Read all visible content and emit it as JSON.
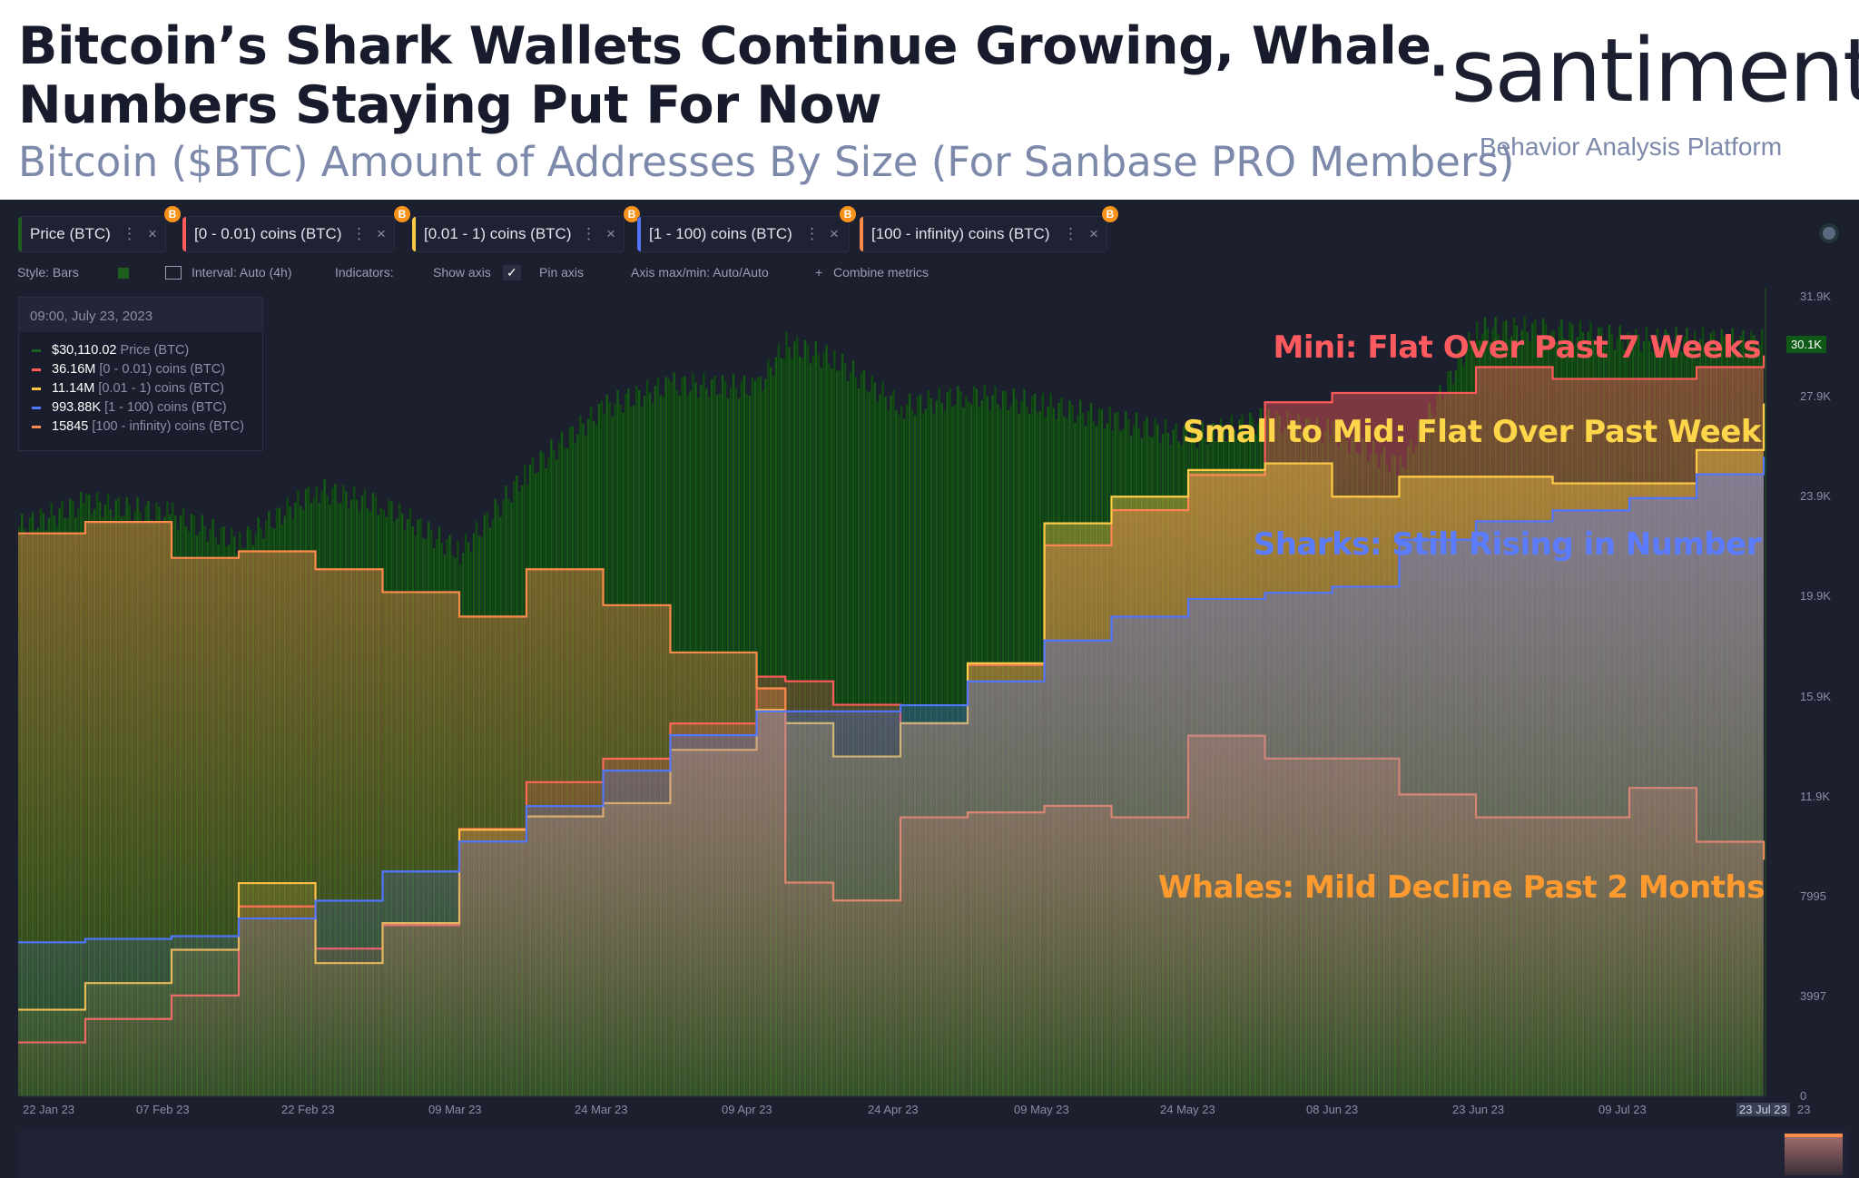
{
  "header": {
    "title_line1": "Bitcoin’s Shark Wallets Continue Growing, Whale",
    "title_line2": "Numbers Staying Put For Now",
    "subtitle": "Bitcoin ($BTC) Amount of Addresses By Size (For Sanbase PRO Members)",
    "logo": "·santiment·",
    "tagline": "Behavior Analysis Platform"
  },
  "tabs": [
    {
      "label": "Price (BTC)",
      "color": "#1e5e1e"
    },
    {
      "label": "[0 - 0.01) coins (BTC)",
      "color": "#ff5b5b"
    },
    {
      "label": "[0.01 - 1) coins (BTC)",
      "color": "#ffcb47"
    },
    {
      "label": "[1 - 100) coins (BTC)",
      "color": "#5275ff"
    },
    {
      "label": "[100 - infinity) coins (BTC)",
      "color": "#ff8a4c"
    }
  ],
  "controls": {
    "style": "Style: Bars",
    "interval": "Interval: Auto (4h)",
    "indicators": "Indicators:",
    "show_axis": "Show axis",
    "pin_axis": "Pin axis",
    "axis_maxmin": "Axis max/min: Auto/Auto",
    "combine": "Combine metrics",
    "btc_glyph": "B",
    "dots": "⋮",
    "close": "×",
    "chev": "⌄",
    "check": "✓",
    "plus": "+"
  },
  "legend": {
    "date": "09:00, July 23, 2023",
    "rows": [
      {
        "value": "$30,110.02",
        "label": "Price (BTC)",
        "color": "#1e5e1e"
      },
      {
        "value": "36.16M",
        "label": "[0 - 0.01) coins (BTC)",
        "color": "#ff5b5b"
      },
      {
        "value": "11.14M",
        "label": "[0.01 - 1) coins (BTC)",
        "color": "#ffcb47"
      },
      {
        "value": "993.88K",
        "label": "[1 - 100) coins (BTC)",
        "color": "#5275ff"
      },
      {
        "value": "15845",
        "label": "[100 - infinity) coins (BTC)",
        "color": "#ff8a4c"
      }
    ]
  },
  "annotations": {
    "mini": "Mini: Flat Over Past 7 Weeks",
    "small": "Small to Mid: Flat Over Past Week",
    "sharks": "Sharks: Still Rising in Number",
    "whales": "Whales: Mild Decline Past 2 Months"
  },
  "chart_data": {
    "type": "area",
    "x": [
      "2023-01-22",
      "2023-01-29",
      "2023-02-07",
      "2023-02-14",
      "2023-02-22",
      "2023-03-01",
      "2023-03-09",
      "2023-03-16",
      "2023-03-24",
      "2023-03-31",
      "2023-04-09",
      "2023-04-12",
      "2023-04-17",
      "2023-04-24",
      "2023-05-01",
      "2023-05-09",
      "2023-05-16",
      "2023-05-24",
      "2023-06-01",
      "2023-06-08",
      "2023-06-15",
      "2023-06-23",
      "2023-07-01",
      "2023-07-09",
      "2023-07-16",
      "2023-07-23"
    ],
    "x_tick_labels": [
      "22 Jan 23",
      "07 Feb 23",
      "22 Feb 23",
      "09 Mar 23",
      "24 Mar 23",
      "09 Apr 23",
      "24 Apr 23",
      "09 May 23",
      "24 May 23",
      "08 Jun 23",
      "23 Jun 23",
      "09 Jul 23",
      "23 Jul 23",
      "23"
    ],
    "y_tick_labels": [
      "31.9K",
      "27.9K",
      "23.9K",
      "19.9K",
      "15.9K",
      "11.9K",
      "7995",
      "3997",
      "0"
    ],
    "ylim": [
      0,
      31900
    ],
    "current_price_label": "30.1K",
    "grid": false,
    "series": [
      {
        "name": "Price (BTC)",
        "type": "bar",
        "color": "#1e5e1e",
        "values": [
          22700,
          23700,
          23200,
          22100,
          24200,
          23600,
          21700,
          24900,
          27500,
          28400,
          28300,
          30000,
          29400,
          27500,
          28000,
          27600,
          27000,
          26300,
          27000,
          26500,
          25100,
          30600,
          30600,
          30200,
          30200,
          30110
        ]
      },
      {
        "name": "[0 - 0.01) coins (BTC)",
        "color": "#ff5b5b",
        "unit": "M",
        "range": [
          33.0,
          36.41
        ],
        "values": [
          33.23,
          33.33,
          33.43,
          33.81,
          33.63,
          33.73,
          34.14,
          34.34,
          34.44,
          34.59,
          34.79,
          34.77,
          34.67,
          34.59,
          34.84,
          35.35,
          35.5,
          35.65,
          35.96,
          36.0,
          36.0,
          36.11,
          36.06,
          36.06,
          36.11,
          36.16
        ]
      },
      {
        "name": "[0.01 - 1) coins (BTC)",
        "color": "#ffcb47",
        "unit": "M",
        "range": [
          10.1,
          11.3
        ],
        "values": [
          10.23,
          10.27,
          10.32,
          10.42,
          10.3,
          10.36,
          10.5,
          10.52,
          10.54,
          10.62,
          10.68,
          10.66,
          10.61,
          10.66,
          10.75,
          10.96,
          11.0,
          11.04,
          11.05,
          11.0,
          11.03,
          11.03,
          11.02,
          11.02,
          11.07,
          11.14
        ]
      },
      {
        "name": "[1 - 100) coins (BTC)",
        "color": "#5275ff",
        "unit": "K",
        "range": [
          900,
          1017.35
        ],
        "values": [
          922.6,
          923.1,
          923.5,
          926.1,
          928.7,
          933.0,
          937.4,
          942.6,
          947.8,
          953.0,
          956.5,
          956.5,
          956.5,
          957.4,
          960.9,
          966.9,
          970.4,
          973.0,
          973.9,
          974.8,
          981.7,
          984.4,
          986.0,
          987.8,
          991.3,
          993.88
        ]
      },
      {
        "name": "[100 - infinity) coins (BTC)",
        "color": "#ff8a4c",
        "range": [
          15700,
          16190
        ],
        "values": [
          16045,
          16052,
          16030,
          16034,
          16023,
          16009,
          15994,
          16023,
          16001,
          15972,
          15950,
          15831,
          15820,
          15871,
          15874,
          15878,
          15871,
          15921,
          15907,
          15907,
          15885,
          15871,
          15871,
          15889,
          15856,
          15845
        ]
      }
    ]
  }
}
